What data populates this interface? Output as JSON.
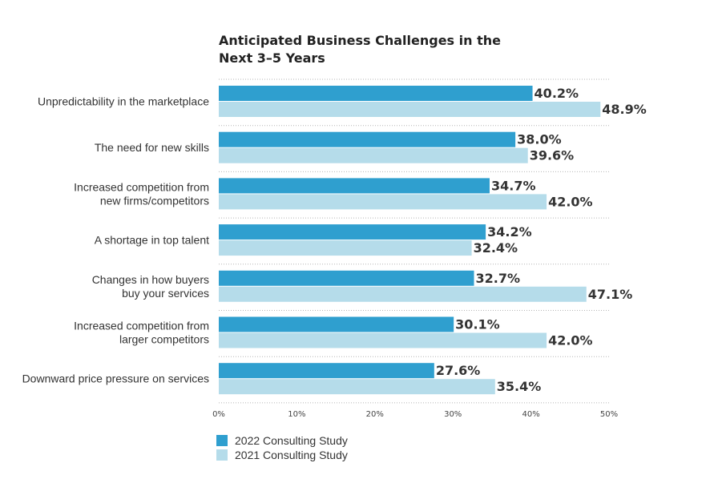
{
  "chart_data": {
    "type": "bar",
    "orientation": "horizontal",
    "title": "Anticipated Business Challenges in the Next 3–5 Years",
    "title_lines": [
      "Anticipated Business Challenges in the",
      "Next 3–5 Years"
    ],
    "categories": [
      [
        "Unpredictability in the marketplace"
      ],
      [
        "The need for new skills"
      ],
      [
        "Increased competition from",
        "new firms/competitors"
      ],
      [
        "A shortage in top talent"
      ],
      [
        "Changes in how buyers",
        "buy your services"
      ],
      [
        "Increased competition from",
        "larger competitors"
      ],
      [
        "Downward price pressure on services"
      ]
    ],
    "series": [
      {
        "name": "2022 Consulting Study",
        "color": "#2f9fcf",
        "values": [
          40.2,
          38.0,
          34.7,
          34.2,
          32.7,
          30.1,
          27.6
        ],
        "labels": [
          "40.2%",
          "38.0%",
          "34.7%",
          "34.2%",
          "32.7%",
          "30.1%",
          "27.6%"
        ]
      },
      {
        "name": "2021 Consulting Study",
        "color": "#b5dcea",
        "values": [
          48.9,
          39.6,
          42.0,
          32.4,
          47.1,
          42.0,
          35.4
        ],
        "labels": [
          "48.9%",
          "39.6%",
          "42.0%",
          "32.4%",
          "47.1%",
          "42.0%",
          "35.4%"
        ]
      }
    ],
    "xlim": [
      0,
      50
    ],
    "xticks": [
      "0%",
      "10%",
      "20%",
      "30%",
      "40%",
      "50%"
    ],
    "xlabel": "",
    "ylabel": "",
    "grid": "dotted horizontal separators",
    "legend_position": "bottom-left"
  }
}
